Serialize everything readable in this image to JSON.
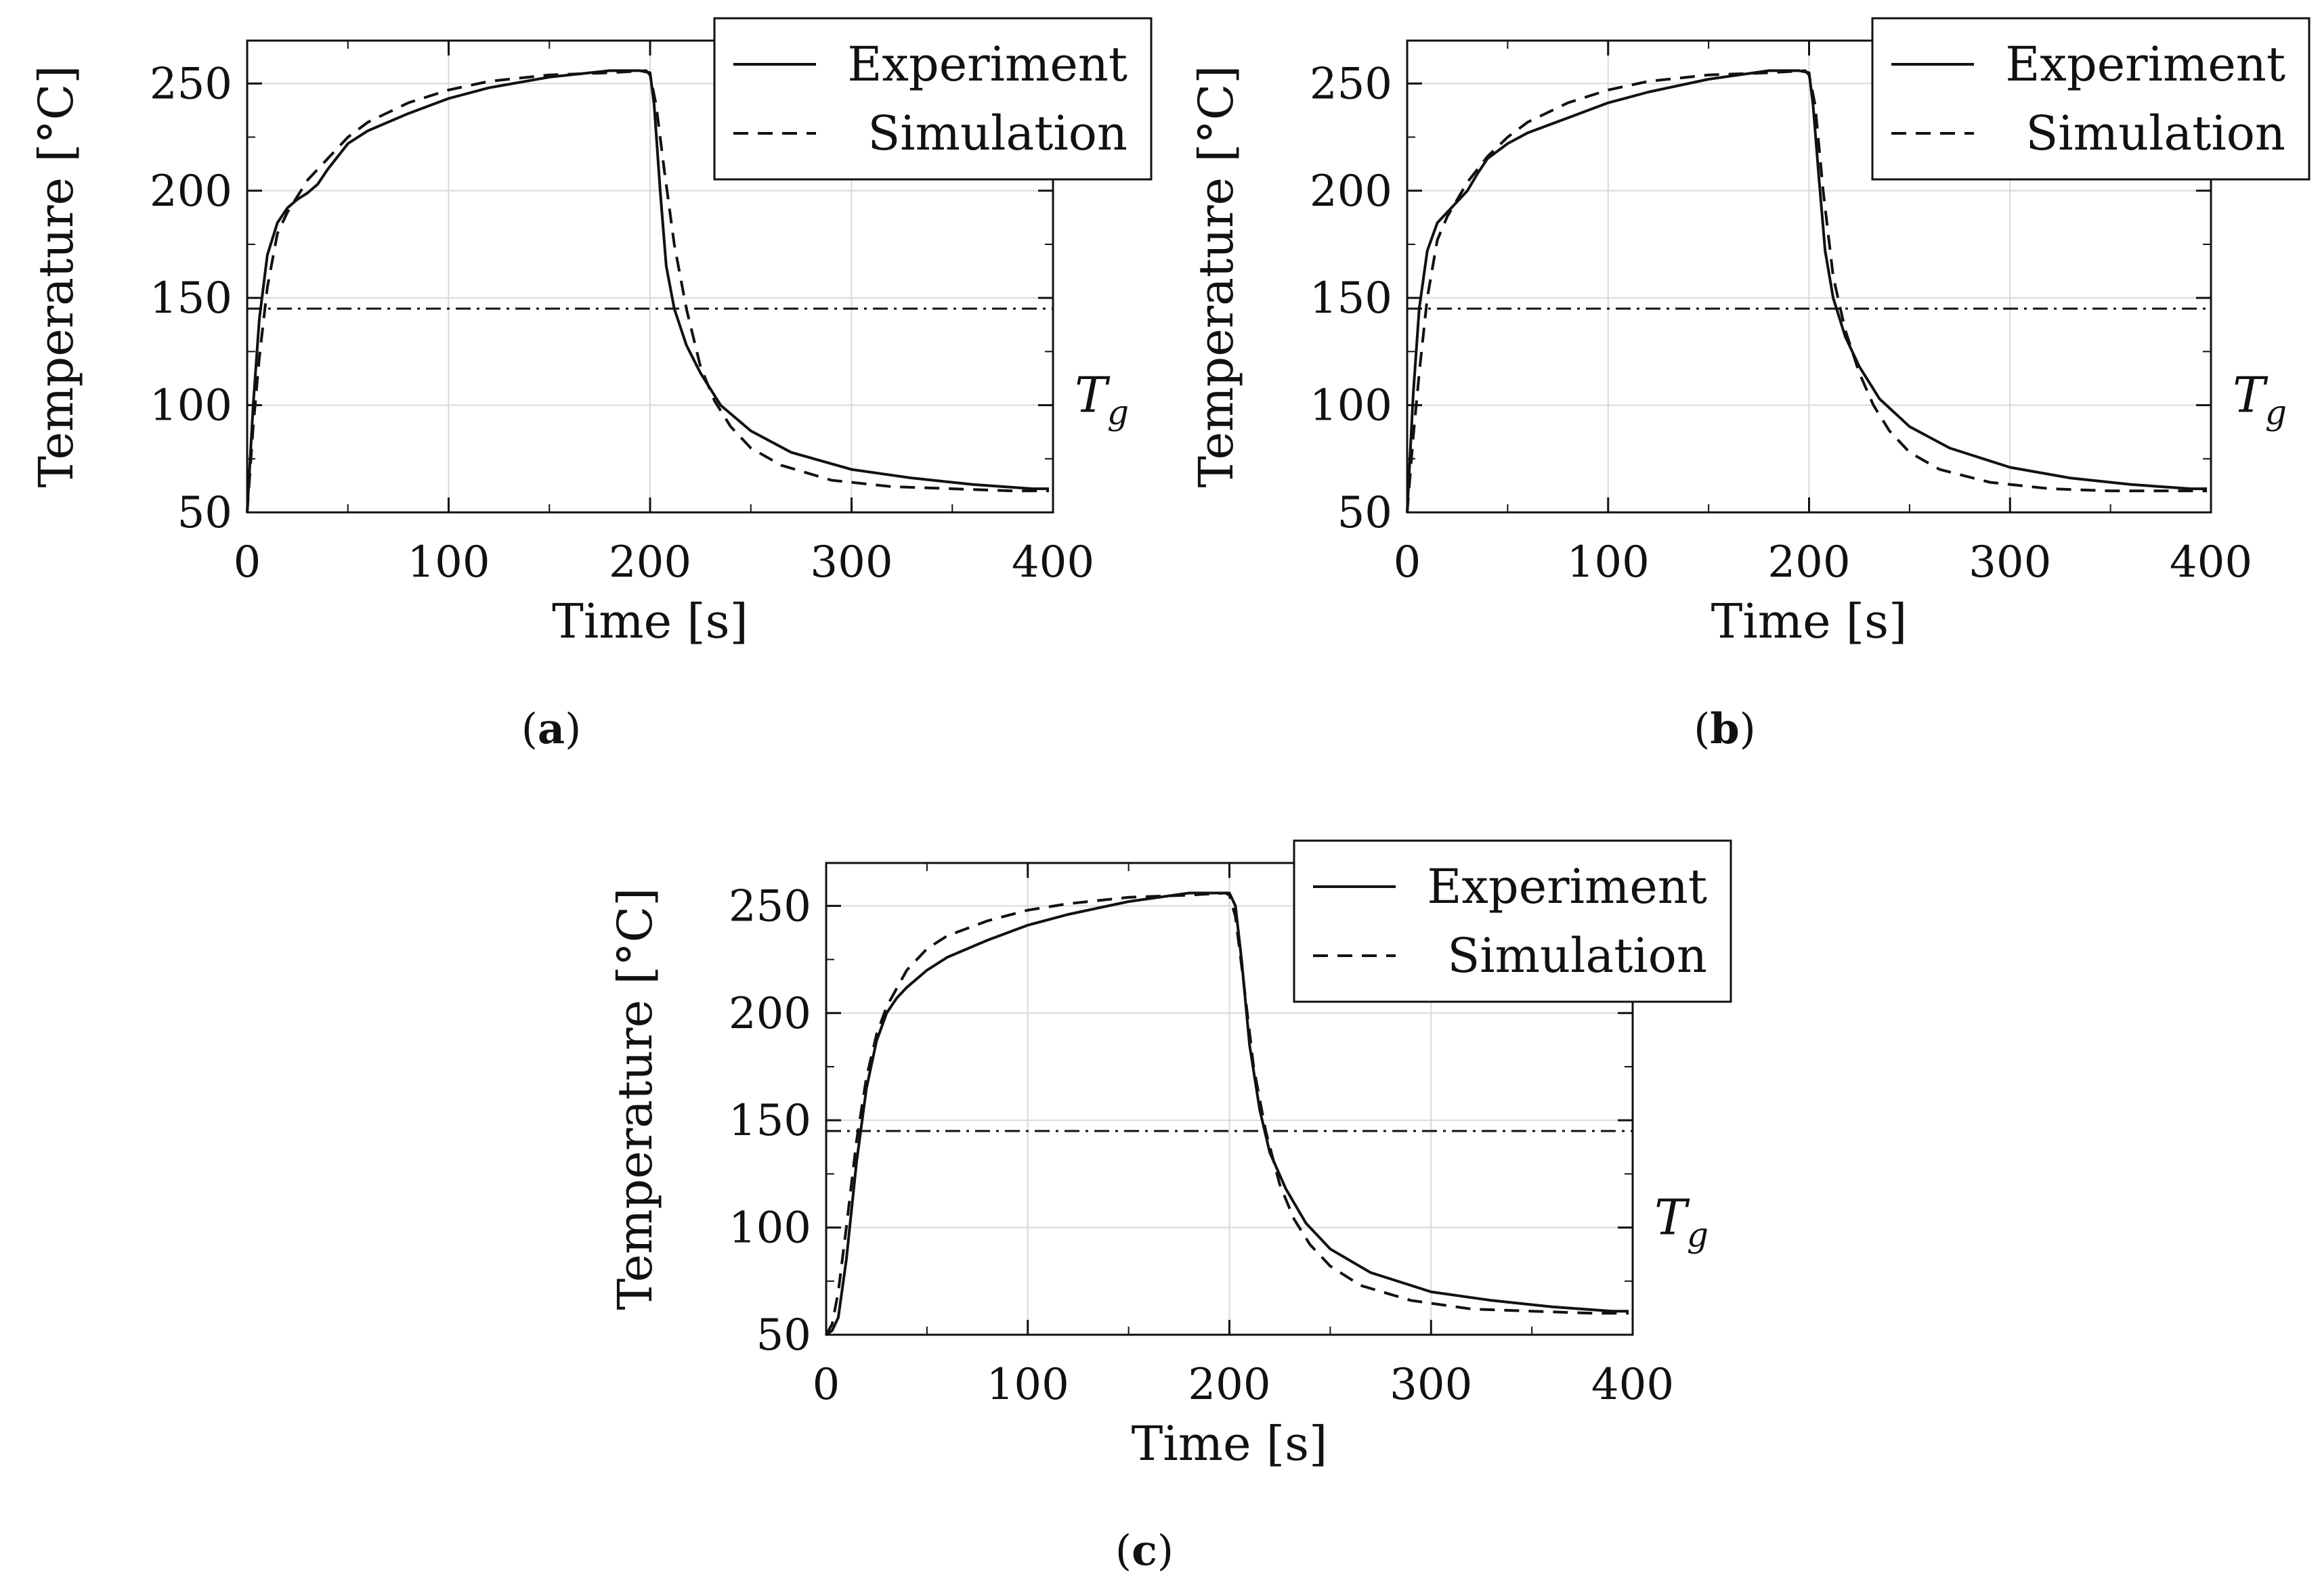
{
  "chart_data": [
    {
      "id": "a",
      "type": "line",
      "caption": "a",
      "xlabel": "Time [s]",
      "ylabel": "Temperature [°C]",
      "xlim": [
        0,
        400
      ],
      "ylim": [
        50,
        270
      ],
      "xticks": [
        0,
        100,
        200,
        300,
        400
      ],
      "yticks": [
        50,
        100,
        150,
        200,
        250
      ],
      "grid": true,
      "legend_position": "top-right",
      "annotation": {
        "text": "T",
        "subscript": "g",
        "value": 145
      },
      "series": [
        {
          "name": "Experiment",
          "style": "solid",
          "x": [
            0,
            3,
            6,
            10,
            15,
            20,
            25,
            30,
            35,
            40,
            50,
            60,
            80,
            100,
            120,
            150,
            180,
            195,
            200,
            202,
            205,
            208,
            212,
            218,
            225,
            235,
            250,
            270,
            300,
            330,
            360,
            390,
            398
          ],
          "y": [
            50,
            100,
            140,
            170,
            185,
            192,
            196,
            199,
            203,
            210,
            222,
            228,
            236,
            243,
            248,
            253,
            256,
            256,
            255,
            240,
            200,
            165,
            145,
            128,
            115,
            100,
            88,
            78,
            70,
            66,
            63,
            61,
            61
          ]
        },
        {
          "name": "Simulation",
          "style": "dashed",
          "x": [
            0,
            3,
            6,
            10,
            15,
            20,
            30,
            40,
            50,
            60,
            80,
            100,
            120,
            150,
            180,
            198,
            200,
            203,
            207,
            212,
            218,
            225,
            232,
            240,
            250,
            265,
            290,
            320,
            350,
            380,
            398
          ],
          "y": [
            50,
            90,
            122,
            155,
            180,
            190,
            205,
            215,
            225,
            232,
            241,
            247,
            251,
            254,
            255,
            256,
            254,
            240,
            210,
            175,
            145,
            118,
            102,
            90,
            80,
            72,
            65,
            62,
            61,
            60,
            60
          ]
        }
      ]
    },
    {
      "id": "b",
      "type": "line",
      "caption": "b",
      "xlabel": "Time [s]",
      "ylabel": "Temperature [°C]",
      "xlim": [
        0,
        400
      ],
      "ylim": [
        50,
        270
      ],
      "xticks": [
        0,
        100,
        200,
        300,
        400
      ],
      "yticks": [
        50,
        100,
        150,
        200,
        250
      ],
      "grid": true,
      "legend_position": "top-right",
      "annotation": {
        "text": "T",
        "subscript": "g",
        "value": 145
      },
      "series": [
        {
          "name": "Experiment",
          "style": "solid",
          "x": [
            0,
            3,
            6,
            10,
            15,
            20,
            25,
            30,
            35,
            40,
            50,
            60,
            80,
            100,
            120,
            150,
            180,
            195,
            200,
            202,
            205,
            208,
            212,
            218,
            225,
            235,
            250,
            270,
            300,
            330,
            360,
            390,
            398
          ],
          "y": [
            50,
            105,
            145,
            172,
            185,
            190,
            195,
            200,
            208,
            215,
            222,
            227,
            234,
            241,
            246,
            252,
            256,
            256,
            255,
            240,
            205,
            172,
            150,
            132,
            118,
            103,
            90,
            80,
            71,
            66,
            63,
            61,
            61
          ]
        },
        {
          "name": "Simulation",
          "style": "dashed",
          "x": [
            0,
            3,
            6,
            10,
            15,
            20,
            30,
            40,
            50,
            60,
            80,
            100,
            120,
            150,
            180,
            198,
            200,
            203,
            207,
            212,
            218,
            225,
            232,
            240,
            250,
            265,
            290,
            320,
            350,
            380,
            398
          ],
          "y": [
            50,
            85,
            115,
            150,
            177,
            188,
            204,
            216,
            225,
            232,
            241,
            247,
            251,
            254,
            255,
            256,
            254,
            240,
            200,
            160,
            135,
            115,
            100,
            88,
            78,
            70,
            64,
            61,
            60,
            60,
            60
          ]
        }
      ]
    },
    {
      "id": "c",
      "type": "line",
      "caption": "c",
      "xlabel": "Time [s]",
      "ylabel": "Temperature [°C]",
      "xlim": [
        0,
        400
      ],
      "ylim": [
        50,
        270
      ],
      "xticks": [
        0,
        100,
        200,
        300,
        400
      ],
      "yticks": [
        50,
        100,
        150,
        200,
        250
      ],
      "grid": true,
      "legend_position": "top-right",
      "annotation": {
        "text": "T",
        "subscript": "g",
        "value": 145
      },
      "series": [
        {
          "name": "Experiment",
          "style": "solid",
          "x": [
            0,
            3,
            6,
            10,
            15,
            20,
            25,
            30,
            35,
            40,
            50,
            60,
            80,
            100,
            120,
            150,
            180,
            195,
            200,
            203,
            206,
            210,
            215,
            220,
            228,
            238,
            250,
            270,
            300,
            330,
            360,
            390,
            398
          ],
          "y": [
            50,
            52,
            58,
            85,
            130,
            165,
            187,
            200,
            207,
            212,
            220,
            226,
            234,
            241,
            246,
            252,
            256,
            256,
            256,
            250,
            225,
            185,
            155,
            135,
            118,
            102,
            90,
            79,
            70,
            66,
            63,
            61,
            61
          ]
        },
        {
          "name": "Simulation",
          "style": "dashed",
          "x": [
            0,
            3,
            6,
            10,
            15,
            20,
            25,
            30,
            40,
            50,
            60,
            80,
            100,
            120,
            150,
            180,
            198,
            200,
            203,
            207,
            212,
            218,
            225,
            232,
            240,
            250,
            265,
            290,
            320,
            350,
            380,
            398
          ],
          "y": [
            50,
            55,
            70,
            100,
            140,
            170,
            190,
            203,
            220,
            230,
            236,
            243,
            248,
            251,
            254,
            255,
            256,
            255,
            245,
            215,
            175,
            145,
            120,
            104,
            92,
            82,
            73,
            66,
            62,
            61,
            60,
            60
          ]
        }
      ]
    }
  ]
}
